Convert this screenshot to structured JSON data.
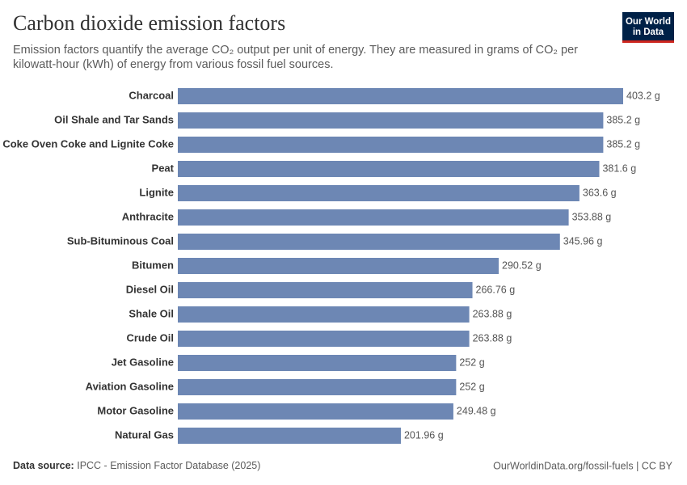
{
  "chart_data": {
    "type": "bar",
    "orientation": "horizontal",
    "title": "Carbon dioxide emission factors",
    "subtitle": [
      "Emission factors quantify the average CO₂ output per unit of energy. They are measured in grams of CO₂ per",
      "kilowatt-hour (kWh) of energy from various fossil fuel sources."
    ],
    "logo": [
      "Our World",
      "in Data"
    ],
    "source_label": "Data source:",
    "source": "IPCC - Emission Factor Database (2025)",
    "footer_right": "OurWorldinData.org/fossil-fuels | CC BY",
    "color": "#6d87b4",
    "categories": [
      "Charcoal",
      "Oil Shale and Tar Sands",
      "Coke Oven Coke and Lignite Coke",
      "Peat",
      "Lignite",
      "Anthracite",
      "Sub-Bituminous Coal",
      "Bitumen",
      "Diesel Oil",
      "Shale Oil",
      "Crude Oil",
      "Jet Gasoline",
      "Aviation Gasoline",
      "Motor Gasoline",
      "Natural Gas"
    ],
    "values": [
      403.2,
      385.2,
      385.2,
      381.6,
      363.6,
      353.88,
      345.96,
      290.52,
      266.76,
      263.88,
      263.88,
      252,
      252,
      249.48,
      201.96
    ],
    "value_labels": [
      "403.2 g",
      "385.2 g",
      "385.2 g",
      "381.6 g",
      "363.6 g",
      "353.88 g",
      "345.96 g",
      "290.52 g",
      "266.76 g",
      "263.88 g",
      "263.88 g",
      "252 g",
      "252 g",
      "249.48 g",
      "201.96 g"
    ]
  }
}
